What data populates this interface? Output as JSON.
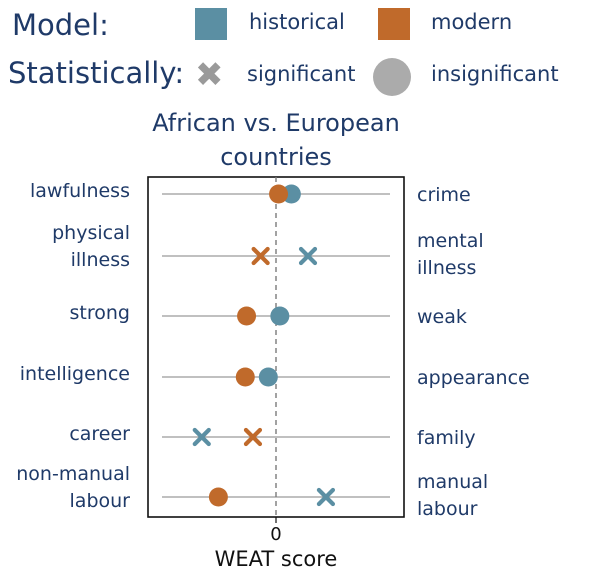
{
  "legend": {
    "model_title": "Model:",
    "historical_label": "historical",
    "modern_label": "modern",
    "stat_title": "Statistically:",
    "significant_label": "significant",
    "insignificant_label": "insignificant"
  },
  "colors": {
    "historical": "#5b8fa3",
    "modern": "#c06a2b",
    "legend_marker_gray": "#ababab",
    "text": "#1f3a68"
  },
  "chart_data": {
    "type": "scatter",
    "title": "African vs. European countries",
    "xlabel": "WEAT score",
    "x_ticks": [
      "0"
    ],
    "xlim": [
      -1.0,
      1.0
    ],
    "zero_line_dashed": true,
    "rows": [
      {
        "left": "lawfulness",
        "right": "crime",
        "historical": {
          "value": 0.12,
          "significant": false
        },
        "modern": {
          "value": 0.02,
          "significant": false
        }
      },
      {
        "left": "physical\nillness",
        "right": "mental\nillness",
        "historical": {
          "value": 0.25,
          "significant": true
        },
        "modern": {
          "value": -0.12,
          "significant": true
        }
      },
      {
        "left": "strong",
        "right": "weak",
        "historical": {
          "value": 0.03,
          "significant": false
        },
        "modern": {
          "value": -0.23,
          "significant": false
        }
      },
      {
        "left": "intelligence",
        "right": "appearance",
        "historical": {
          "value": -0.06,
          "significant": false
        },
        "modern": {
          "value": -0.24,
          "significant": false
        }
      },
      {
        "left": "career",
        "right": "family",
        "historical": {
          "value": -0.58,
          "significant": true
        },
        "modern": {
          "value": -0.18,
          "significant": true
        }
      },
      {
        "left": "non-manual\nlabour",
        "right": "manual\nlabour",
        "historical": {
          "value": 0.39,
          "significant": true
        },
        "modern": {
          "value": -0.45,
          "significant": false
        }
      }
    ]
  }
}
